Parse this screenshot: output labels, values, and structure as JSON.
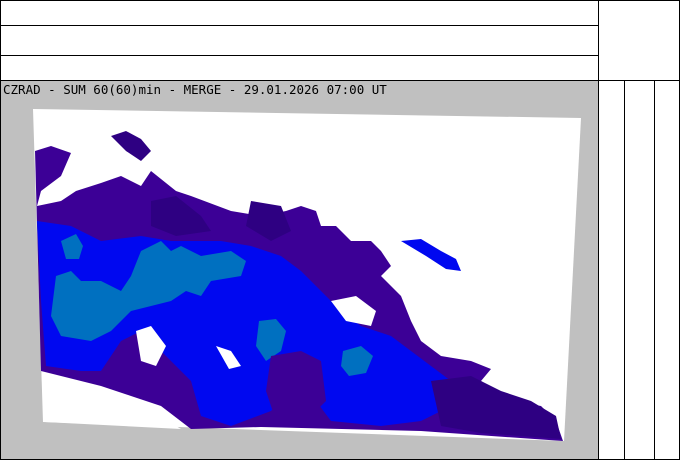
{
  "header": {
    "rows": [
      "",
      "",
      ""
    ],
    "right_panel": ""
  },
  "map": {
    "title": "CZRAD - SUM 60(60)min - MERGE - 29.01.2026 07:00 UT",
    "colors": {
      "background": "#c0c0c0",
      "domain": "#ffffff",
      "level1": "#2e0082",
      "level2": "#3c0096",
      "level3": "#0008f0",
      "level4": "#0070c0"
    }
  },
  "legend": {
    "columns": [
      "",
      "",
      ""
    ]
  }
}
